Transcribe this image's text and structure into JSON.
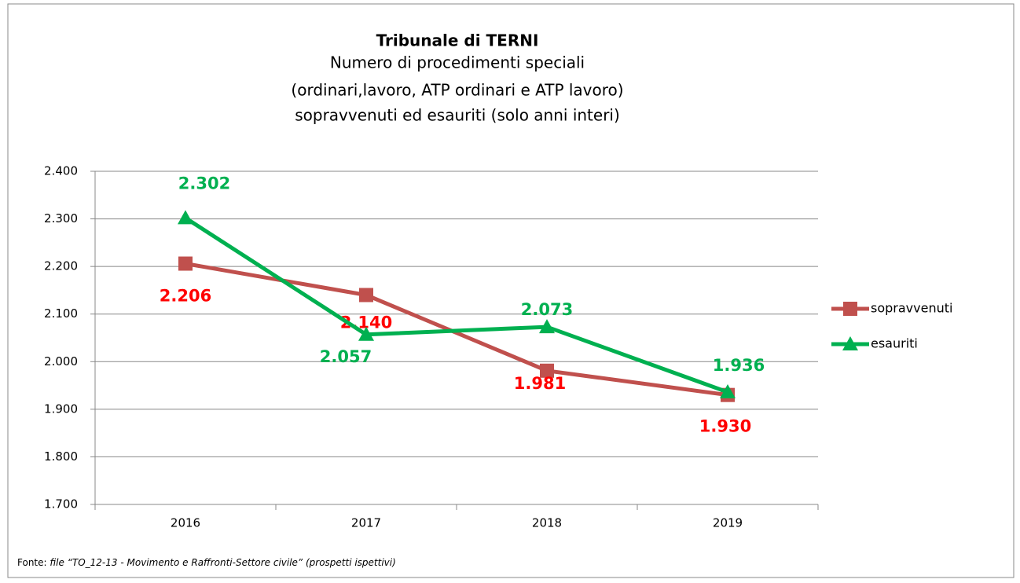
{
  "chart_data": {
    "type": "line",
    "title": "Tribunale di TERNI",
    "subtitle": [
      "Numero di procedimenti speciali",
      "(ordinari,lavoro, ATP ordinari e ATP lavoro)",
      "sopravvenuti ed esauriti (solo anni interi)"
    ],
    "categories": [
      "2016",
      "2017",
      "2018",
      "2019"
    ],
    "series": [
      {
        "name": "sopravvenuti",
        "color": "#c0504d",
        "label_color": "#ff0000",
        "marker": "square",
        "values": [
          2206,
          2140,
          1981,
          1930
        ],
        "value_labels": [
          "2.206",
          "2.140",
          "1.981",
          "1.930"
        ]
      },
      {
        "name": "esauriti",
        "color": "#00b050",
        "label_color": "#00b050",
        "marker": "triangle",
        "values": [
          2302,
          2057,
          2073,
          1936
        ],
        "value_labels": [
          "2.302",
          "2.057",
          "2.073",
          "1.936"
        ]
      }
    ],
    "ylim": [
      1700,
      2400
    ],
    "yticks": [
      {
        "value": 1700,
        "label": "1.700"
      },
      {
        "value": 1800,
        "label": "1.800"
      },
      {
        "value": 1900,
        "label": "1.900"
      },
      {
        "value": 2000,
        "label": "2.000"
      },
      {
        "value": 2100,
        "label": "2.100"
      },
      {
        "value": 2200,
        "label": "2.200"
      },
      {
        "value": 2300,
        "label": "2.300"
      },
      {
        "value": 2400,
        "label": "2.400"
      }
    ],
    "grid": true,
    "legend": "right",
    "source": {
      "label": "Fonte:",
      "text": "file “TO_12-13 - Movimento e Raffronti-Settore civile” (prospetti ispettivi)"
    }
  }
}
